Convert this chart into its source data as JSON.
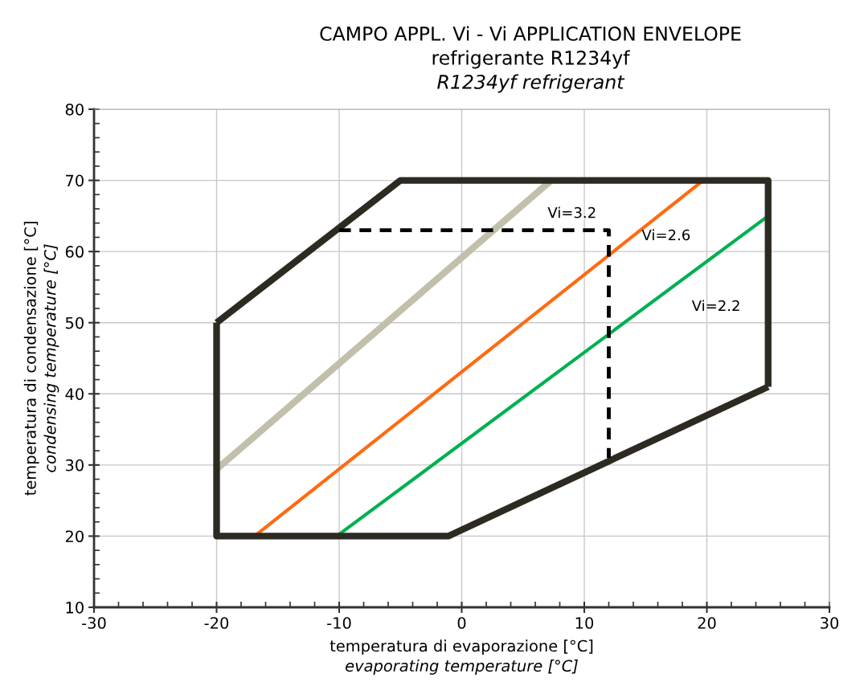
{
  "chart_data": {
    "type": "line",
    "title": "CAMPO APPL. Vi - Vi APPLICATION ENVELOPE\nrefrigerante R1234yf",
    "subtitle": "R1234yf refrigerant",
    "xlabel": "temperatura di evaporazione [°C]\nevaporating temperature [°C]",
    "ylabel": "temperatura di condensazione [°C]\ncondensing temperature [°C]",
    "xlim": [
      -30,
      30
    ],
    "xticks": [
      -30,
      -20,
      -10,
      0,
      10,
      20,
      30
    ],
    "ylim": [
      10,
      80
    ],
    "yticks": [
      10,
      20,
      30,
      40,
      50,
      60,
      70,
      80
    ],
    "grid": true,
    "marker": "none",
    "series": [
      {
        "color": "#c2bfab",
        "x": [
          -20,
          7.3
        ],
        "values": [
          29.4,
          70
        ],
        "line_style": "solid"
      },
      {
        "color": "#ff6a10",
        "x": [
          -16.9,
          19.7
        ],
        "values": [
          20,
          70
        ],
        "line_style": "solid"
      },
      {
        "color": "#00b050",
        "x": [
          -10.2,
          25
        ],
        "values": [
          20,
          65
        ],
        "line_style": "solid"
      },
      {
        "color": "#2d2a22",
        "x": [
          -20,
          -5,
          25,
          25
        ],
        "values": [
          50,
          70,
          70,
          41
        ],
        "line_style": "solid"
      },
      {
        "color": "#2d2a22",
        "x": [
          -20,
          -20,
          -1.1,
          25
        ],
        "values": [
          50,
          20,
          20,
          41
        ],
        "line_style": "solid"
      },
      {
        "color": "#000000",
        "x": [
          -10,
          12,
          12
        ],
        "values": [
          63,
          63,
          31
        ],
        "line_style": "dashed"
      }
    ],
    "annotations": [
      "Vi=3.2",
      "Vi=2.6",
      "Vi=2.2"
    ]
  }
}
